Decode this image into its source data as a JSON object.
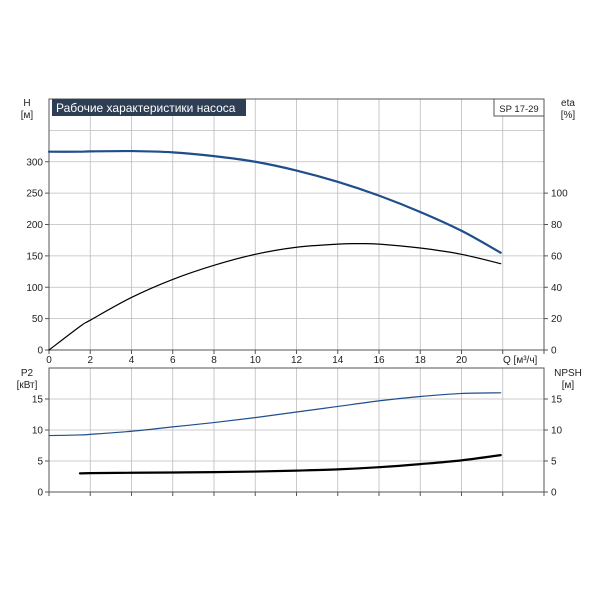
{
  "title": "Рабочие характеристики насоса",
  "model_label": "SP 17-29",
  "colors": {
    "title_bg": "#2d3e55",
    "title_fg": "#ffffff",
    "blue": "#1f4e8c",
    "black": "#000000",
    "grid": "#bdbdbd",
    "frame": "#555555"
  },
  "chart_data": [
    {
      "type": "line",
      "panel": "head-efficiency",
      "title": "Рабочие характеристики насоса",
      "xlabel": "Q [м³/ч]",
      "ylabel_left": [
        "H",
        "[м]"
      ],
      "ylabel_right": [
        "eta",
        "[%]"
      ],
      "xlim": [
        0,
        24
      ],
      "ylim_left": [
        0,
        400
      ],
      "ylim_right": [
        0,
        160
      ],
      "x_ticks": [
        0,
        2,
        4,
        6,
        8,
        10,
        12,
        14,
        16,
        18,
        20
      ],
      "y_ticks_left": [
        0,
        50,
        100,
        150,
        200,
        250,
        300
      ],
      "y_ticks_right": [
        0,
        20,
        40,
        60,
        80,
        100
      ],
      "grid": true,
      "series": [
        {
          "axis": "left",
          "color": "#1f4e8c",
          "width": 2.2,
          "x": [
            0,
            1.5,
            2,
            4,
            6,
            8,
            10,
            12,
            14,
            16,
            18,
            20,
            21.9
          ],
          "y": [
            316,
            316,
            316.5,
            317,
            315,
            309,
            300,
            286,
            268,
            246,
            220,
            190,
            155
          ]
        },
        {
          "axis": "right",
          "color": "#000000",
          "width": 1.2,
          "x": [
            0,
            1.5,
            2,
            4,
            6,
            8,
            10,
            12,
            14,
            15,
            16,
            18,
            20,
            21.9
          ],
          "y": [
            0,
            15,
            19,
            33.5,
            45,
            54,
            61,
            65.5,
            67.5,
            67.8,
            67.5,
            65,
            61,
            55
          ]
        }
      ]
    },
    {
      "type": "line",
      "panel": "power-npsh",
      "xlim": [
        0,
        24
      ],
      "ylim_left": [
        0,
        20
      ],
      "ylim_right": [
        0,
        20
      ],
      "ylabel_left": [
        "P2",
        "[кВт]"
      ],
      "ylabel_right": [
        "NPSH",
        "[м]"
      ],
      "y_ticks_left": [
        0,
        5,
        10,
        15
      ],
      "y_ticks_right": [
        0,
        5,
        10,
        15
      ],
      "grid": true,
      "series": [
        {
          "axis": "left",
          "color": "#1f4e8c",
          "width": 1.2,
          "x": [
            0,
            1.5,
            2,
            4,
            6,
            8,
            10,
            12,
            14,
            16,
            18,
            20,
            21.9
          ],
          "y": [
            9.1,
            9.2,
            9.3,
            9.8,
            10.5,
            11.2,
            12.0,
            12.9,
            13.8,
            14.7,
            15.4,
            15.9,
            16.0
          ]
        },
        {
          "axis": "left",
          "color": "#000000",
          "width": 2.2,
          "x": [
            1.5,
            2,
            4,
            6,
            8,
            10,
            12,
            14,
            16,
            18,
            20,
            21.9
          ],
          "y": [
            3.0,
            3.05,
            3.1,
            3.15,
            3.2,
            3.3,
            3.45,
            3.65,
            4.0,
            4.5,
            5.1,
            5.95
          ]
        }
      ]
    }
  ]
}
